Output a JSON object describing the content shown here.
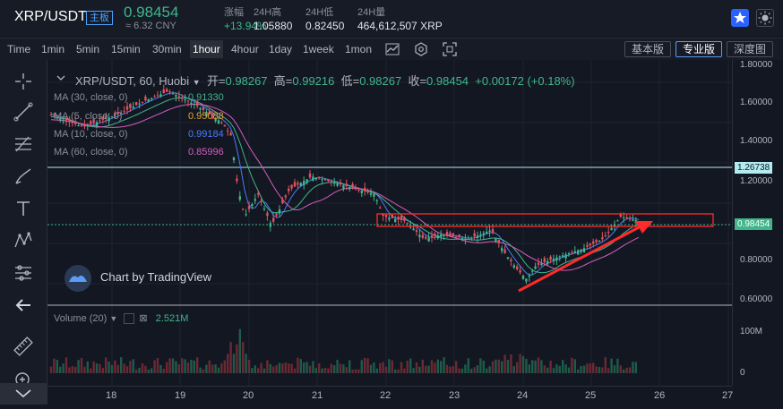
{
  "header": {
    "pair": "XRP/USDT",
    "badge": "主板",
    "price": "0.98454",
    "cny": "≈ 6.32 CNY",
    "stats": [
      {
        "label": "涨幅",
        "value": "+13.94%"
      },
      {
        "label": "24H高",
        "value": "1.05880"
      },
      {
        "label": "24H低",
        "value": "0.82450"
      },
      {
        "label": "24H量",
        "value": "464,612,507 XRP"
      }
    ]
  },
  "timeframes": [
    "Time",
    "1min",
    "5min",
    "15min",
    "30min",
    "1hour",
    "4hour",
    "1day",
    "1week",
    "1mon"
  ],
  "active_timeframe": "1hour",
  "versions": [
    "基本版",
    "专业版",
    "深度图"
  ],
  "active_version": "专业版",
  "legend": {
    "symbol": "XRP/USDT, 60, Huobi",
    "open_label": "开=",
    "open": "0.98267",
    "high_label": "高=",
    "high": "0.99216",
    "low_label": "低=",
    "low": "0.98267",
    "close_label": "收=",
    "close": "0.98454",
    "change": "+0.00172 (+0.18%)"
  },
  "ma": [
    {
      "label": "MA (30, close, 0)",
      "value": "0.91330",
      "color": "#3fb68b"
    },
    {
      "label": "MA (5, close, 0)",
      "value": "0.95088",
      "color": "#e8a33b"
    },
    {
      "label": "MA (10, close, 0)",
      "value": "0.99184",
      "color": "#4a7bf6"
    },
    {
      "label": "MA (60, close, 0)",
      "value": "0.85996",
      "color": "#d45dbf"
    }
  ],
  "watermark": "Chart by TradingView",
  "volume": {
    "label": "Volume (20)",
    "value": "2.521M"
  },
  "yaxis": [
    "1.80000",
    "1.60000",
    "1.40000",
    "1.20000",
    "0.80000",
    "0.60000"
  ],
  "yaxis_vol": [
    "100M",
    "0"
  ],
  "price_tags": [
    {
      "value": "1.26738",
      "color": "#b2ebf2"
    },
    {
      "value": "0.98454",
      "color": "#3fb68b"
    }
  ],
  "xaxis": [
    "18",
    "19",
    "20",
    "21",
    "22",
    "23",
    "24",
    "25",
    "26",
    "27"
  ],
  "colors": {
    "up": "#3fb68b",
    "down": "#e05260",
    "annotation": "#ff2b2b"
  }
}
